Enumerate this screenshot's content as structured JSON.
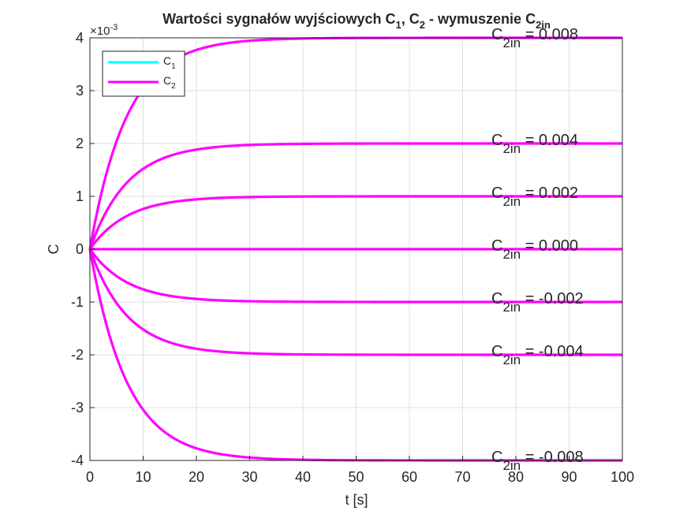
{
  "chart_data": {
    "type": "line",
    "title": {
      "prefix": "Wartości sygnałów wyjściowych C",
      "sub1": "1",
      "mid": ", C",
      "sub2": "2",
      "suffix": " - wymuszenie C",
      "sub3": "2in"
    },
    "xlabel": "t [s]",
    "ylabel": "C",
    "xlim": [
      0,
      100
    ],
    "ylim": [
      -0.004,
      0.004
    ],
    "exponent": {
      "base": "×10",
      "power": "-3"
    },
    "x_ticks": [
      "0",
      "10",
      "20",
      "30",
      "40",
      "50",
      "60",
      "70",
      "80",
      "90",
      "100"
    ],
    "y_ticks": [
      "-4",
      "-3",
      "-2",
      "-1",
      "0",
      "1",
      "2",
      "3",
      "4"
    ],
    "grid": true,
    "legend_position": "top-left",
    "series": [
      {
        "name": "C",
        "sub": "1",
        "color": "#00ffff",
        "values": []
      },
      {
        "name": "C",
        "sub": "2",
        "color": "#ff00ff",
        "values": [
          0.004,
          0.002,
          0.001,
          0.0,
          -0.001,
          -0.002,
          -0.004
        ]
      }
    ],
    "time_constant": 7,
    "annotations": [
      {
        "main": "C",
        "sub": "2in",
        "text": " = 0.008",
        "y": 0.004
      },
      {
        "main": "C",
        "sub": "2in",
        "text": " = 0.004",
        "y": 0.002
      },
      {
        "main": "C",
        "sub": "2in",
        "text": " = 0.002",
        "y": 0.001
      },
      {
        "main": "C",
        "sub": "2in",
        "text": " = 0.000",
        "y": 0.0
      },
      {
        "main": "C",
        "sub": "2in",
        "text": " = -0.002",
        "y": -0.001
      },
      {
        "main": "C",
        "sub": "2in",
        "text": " = -0.004",
        "y": -0.002
      },
      {
        "main": "C",
        "sub": "2in",
        "text": " = -0.008",
        "y": -0.004
      }
    ]
  }
}
